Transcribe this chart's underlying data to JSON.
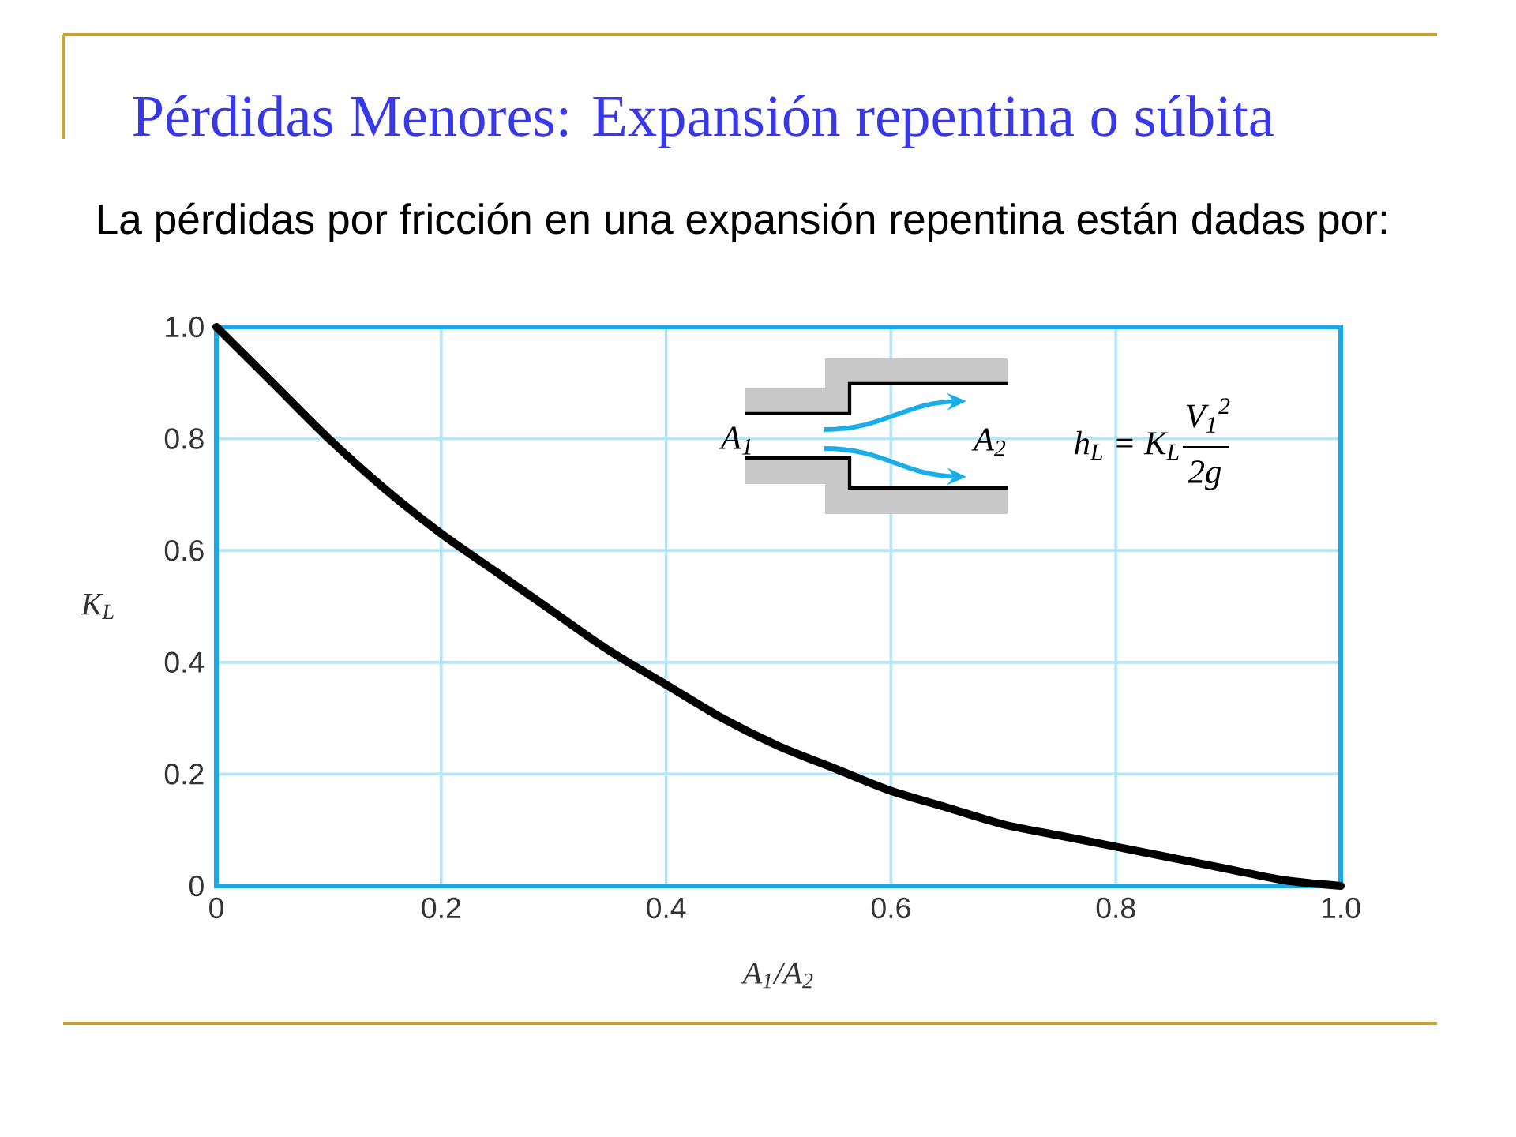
{
  "chart_data": {
    "type": "line",
    "title": "Pérdidas Menores: Expansión repentina o súbita",
    "subtitle": "La pérdidas por fricción en una expansión repentina están dadas por:",
    "xlabel": "A$_{1}$/A$_{2}$",
    "ylabel": "K$_{L}$",
    "annotations": [
      "A$_{1}$",
      "A$_{2}$",
      "h$_{L}$ = K$_{L}$",
      "V$_{1}$$^{2}$",
      "2g"
    ],
    "x": [
      0,
      0.05,
      0.1,
      0.15,
      0.2,
      0.25,
      0.3,
      0.35,
      0.4,
      0.45,
      0.5,
      0.55,
      0.6,
      0.65,
      0.7,
      0.75,
      0.8,
      0.85,
      0.9,
      0.95,
      1.0
    ],
    "series": [
      {
        "color": "#000000",
        "values": [
          1.0,
          0.9,
          0.8,
          0.71,
          0.63,
          0.56,
          0.49,
          0.42,
          0.36,
          0.3,
          0.25,
          0.21,
          0.17,
          0.14,
          0.11,
          0.09,
          0.07,
          0.05,
          0.03,
          0.01,
          0
        ]
      }
    ],
    "xlim": [
      0,
      1
    ],
    "ylim": [
      0,
      1
    ],
    "xticks": [
      0,
      0.2,
      0.4,
      0.6,
      0.8,
      {
        "value": 1,
        "label": "1.0"
      }
    ],
    "yticks": [
      0,
      0.2,
      0.4,
      0.6,
      0.8,
      {
        "value": 1,
        "label": "1.0"
      }
    ],
    "grid": true,
    "line_style": "solid"
  }
}
